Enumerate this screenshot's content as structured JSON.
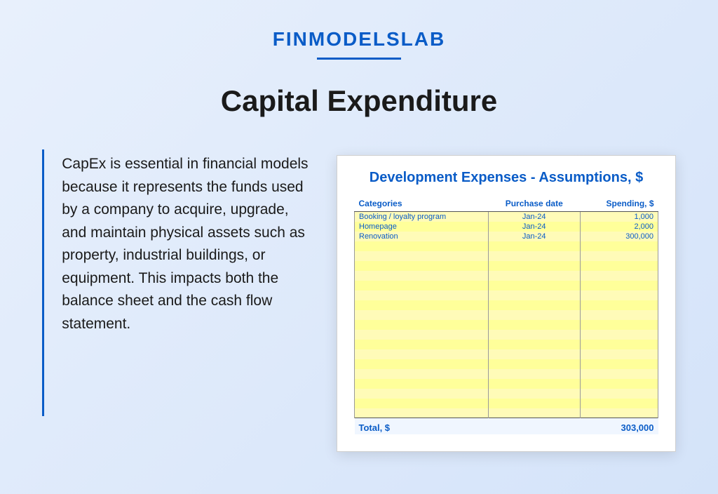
{
  "brand": "FINMODELSLAB",
  "title": "Capital Expenditure",
  "body": "CapEx is essential in financial models because it represents the funds used by a company to acquire, upgrade, and maintain physical assets such as property, industrial buildings, or equipment. This impacts both the balance sheet and the cash flow statement.",
  "sheet": {
    "title": "Development Expenses - Assumptions, $",
    "columns": [
      "Categories",
      "Purchase date",
      "Spending, $"
    ],
    "rows": [
      [
        "Booking / loyalty program",
        "Jan-24",
        "1,000"
      ],
      [
        "Homepage",
        "Jan-24",
        "2,000"
      ],
      [
        "Renovation",
        "Jan-24",
        "300,000"
      ]
    ],
    "blank_rows": 18,
    "total_label": "Total, $",
    "total_value": "303,000",
    "colors": {
      "header_text": "#0a5cc7",
      "cell_bg_odd": "#fffbb8",
      "cell_bg_even": "#ffff9a",
      "border": "#999999",
      "footer_bg": "#f0f6ff"
    }
  },
  "colors": {
    "accent": "#0a5cc7",
    "bg_gradient_start": "#e8f0fc",
    "bg_gradient_end": "#d4e3f9",
    "text": "#1a1a1a"
  }
}
